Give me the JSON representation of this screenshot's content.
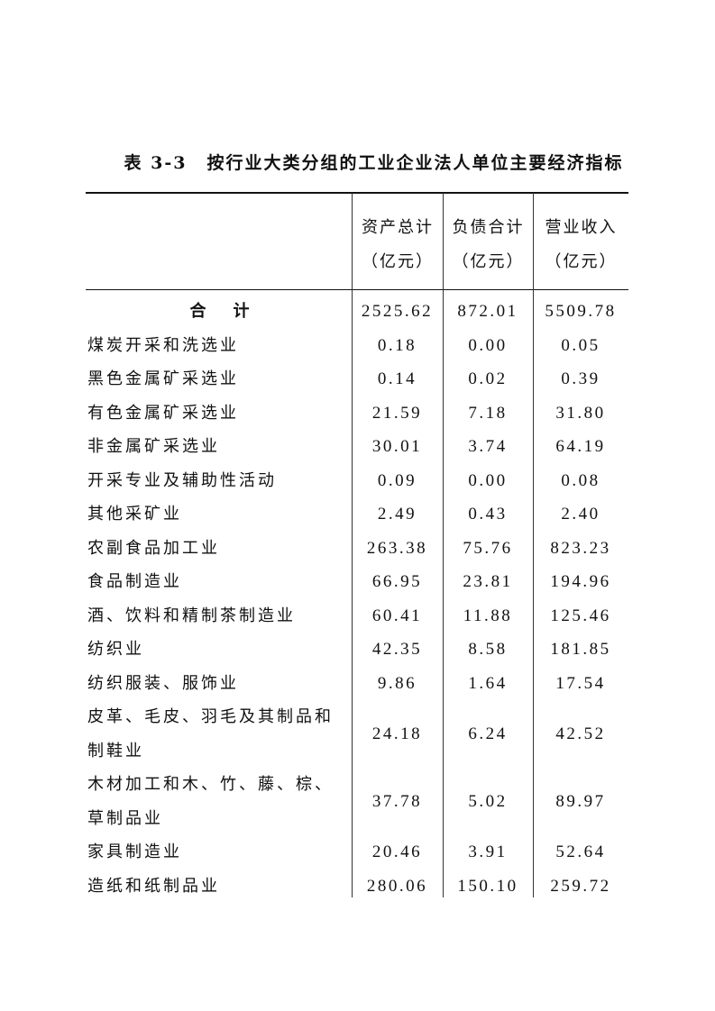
{
  "title": {
    "number": "表 3-3",
    "text": "按行业大类分组的工业企业法人单位主要经济指标"
  },
  "columns": [
    {
      "name": "资产总计",
      "unit": "（亿元）"
    },
    {
      "name": "负债合计",
      "unit": "（亿元）"
    },
    {
      "name": "营业收入",
      "unit": "（亿元）"
    }
  ],
  "total": {
    "label_a": "合",
    "label_b": "计",
    "values": [
      "2525.62",
      "872.01",
      "5509.78"
    ]
  },
  "rows": [
    {
      "label": "煤炭开采和洗选业",
      "values": [
        "0.18",
        "0.00",
        "0.05"
      ]
    },
    {
      "label": "黑色金属矿采选业",
      "values": [
        "0.14",
        "0.02",
        "0.39"
      ]
    },
    {
      "label": "有色金属矿采选业",
      "values": [
        "21.59",
        "7.18",
        "31.80"
      ]
    },
    {
      "label": "非金属矿采选业",
      "values": [
        "30.01",
        "3.74",
        "64.19"
      ]
    },
    {
      "label": "开采专业及辅助性活动",
      "values": [
        "0.09",
        "0.00",
        "0.08"
      ]
    },
    {
      "label": "其他采矿业",
      "values": [
        "2.49",
        "0.43",
        "2.40"
      ]
    },
    {
      "label": "农副食品加工业",
      "values": [
        "263.38",
        "75.76",
        "823.23"
      ]
    },
    {
      "label": "食品制造业",
      "values": [
        "66.95",
        "23.81",
        "194.96"
      ]
    },
    {
      "label": "酒、饮料和精制茶制造业",
      "values": [
        "60.41",
        "11.88",
        "125.46"
      ]
    },
    {
      "label": "纺织业",
      "values": [
        "42.35",
        "8.58",
        "181.85"
      ]
    },
    {
      "label": "纺织服装、服饰业",
      "values": [
        "9.86",
        "1.64",
        "17.54"
      ]
    },
    {
      "label": "皮革、毛皮、羽毛及其制品和制鞋业",
      "values": [
        "24.18",
        "6.24",
        "42.52"
      ]
    },
    {
      "label": "木材加工和木、竹、藤、棕、草制品业",
      "values": [
        "37.78",
        "5.02",
        "89.97"
      ]
    },
    {
      "label": "家具制造业",
      "values": [
        "20.46",
        "3.91",
        "52.64"
      ]
    },
    {
      "label": "造纸和纸制品业",
      "values": [
        "280.06",
        "150.10",
        "259.72"
      ]
    }
  ]
}
